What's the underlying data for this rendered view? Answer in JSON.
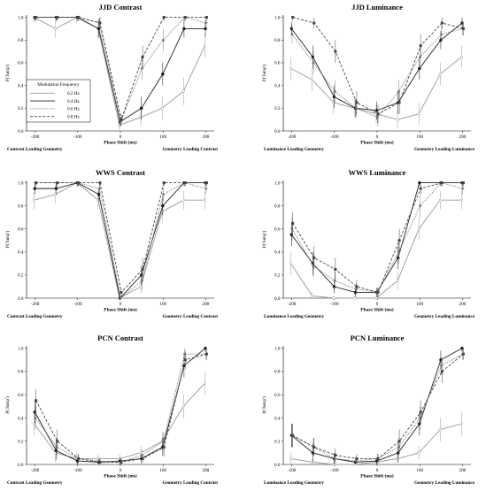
{
  "legend": {
    "title": "Modulation Frequency",
    "entries": [
      "0.2 Hz",
      "0.4 Hz",
      "0.6 Hz",
      "0.8 Hz"
    ]
  },
  "chart_data": [
    {
      "type": "line",
      "title": "JJD Contrast",
      "xlabel": "Phase Shift (ms)",
      "ylabel": "P('Jump')",
      "left_caption": "Contrast Leading Geometry",
      "right_caption": "Geometry Leading Contrast",
      "x": [
        -200,
        -150,
        -100,
        -50,
        0,
        50,
        100,
        150,
        200
      ],
      "xticks": [
        -200,
        -100,
        0,
        100,
        200
      ],
      "yticks": [
        0.0,
        0.2,
        0.4,
        0.6,
        0.8,
        1.0
      ],
      "xlim": [
        -220,
        220
      ],
      "ylim": [
        0,
        1.02
      ],
      "series": [
        {
          "name": "0.2 Hz",
          "values": [
            1.0,
            0.9,
            1.0,
            0.9,
            0.05,
            0.12,
            0.2,
            0.35,
            0.75
          ],
          "errors": [
            0.04,
            0.08,
            0.05,
            0.08,
            0.04,
            0.08,
            0.1,
            0.12,
            0.1
          ]
        },
        {
          "name": "0.4 Hz",
          "values": [
            1.0,
            1.0,
            1.0,
            0.9,
            0.08,
            0.2,
            0.5,
            0.9,
            0.9
          ],
          "errors": [
            0.03,
            0.03,
            0.03,
            0.08,
            0.04,
            0.1,
            0.1,
            0.08,
            0.07
          ]
        },
        {
          "name": "0.6 Hz",
          "values": [
            1.0,
            1.0,
            1.0,
            0.95,
            0.08,
            0.55,
            0.8,
            1.0,
            0.95
          ],
          "errors": [
            0.03,
            0.03,
            0.03,
            0.05,
            0.04,
            0.1,
            0.1,
            0.03,
            0.05
          ]
        },
        {
          "name": "0.8 Hz",
          "values": [
            1.0,
            1.0,
            1.0,
            0.95,
            0.1,
            0.65,
            1.0,
            1.0,
            1.0
          ],
          "errors": [
            0.03,
            0.03,
            0.03,
            0.05,
            0.05,
            0.1,
            0.03,
            0.03,
            0.03
          ]
        }
      ]
    },
    {
      "type": "line",
      "title": "JJD Luminance",
      "xlabel": "Phase Shift (ms)",
      "ylabel": "P('Jump')",
      "left_caption": "Luminance Leading Geometry",
      "right_caption": "Geometry Leading Luminance",
      "x": [
        -200,
        -150,
        -100,
        -50,
        0,
        50,
        100,
        150,
        200
      ],
      "xticks": [
        -200,
        -100,
        0,
        100,
        200
      ],
      "yticks": [
        0.0,
        0.2,
        0.4,
        0.6,
        0.8,
        1.0
      ],
      "xlim": [
        -220,
        220
      ],
      "ylim": [
        0,
        1.02
      ],
      "series": [
        {
          "name": "0.2 Hz",
          "values": [
            0.55,
            0.45,
            0.25,
            0.2,
            0.15,
            0.1,
            0.15,
            0.5,
            0.65
          ],
          "errors": [
            0.1,
            0.1,
            0.1,
            0.08,
            0.08,
            0.08,
            0.1,
            0.1,
            0.1
          ]
        },
        {
          "name": "0.4 Hz",
          "values": [
            0.9,
            0.65,
            0.3,
            0.2,
            0.18,
            0.25,
            0.55,
            0.8,
            0.95
          ],
          "errors": [
            0.06,
            0.1,
            0.1,
            0.08,
            0.08,
            0.1,
            0.1,
            0.08,
            0.05
          ]
        },
        {
          "name": "0.6 Hz",
          "values": [
            0.85,
            0.6,
            0.35,
            0.2,
            0.12,
            0.35,
            0.65,
            0.85,
            0.9
          ],
          "errors": [
            0.08,
            0.1,
            0.1,
            0.08,
            0.08,
            0.1,
            0.1,
            0.08,
            0.06
          ]
        },
        {
          "name": "0.8 Hz",
          "values": [
            1.0,
            0.95,
            0.7,
            0.25,
            0.15,
            0.25,
            0.75,
            0.95,
            0.9
          ],
          "errors": [
            0.03,
            0.05,
            0.1,
            0.1,
            0.08,
            0.1,
            0.1,
            0.05,
            0.06
          ]
        }
      ]
    },
    {
      "type": "line",
      "title": "WWS Contrast",
      "xlabel": "Phase Shift (ms)",
      "ylabel": "P('Jump')",
      "left_caption": "Contrast Leading Geometry",
      "right_caption": "Geometry Leading Contrast",
      "x": [
        -200,
        -150,
        -100,
        -50,
        0,
        50,
        100,
        150,
        200
      ],
      "xticks": [
        -200,
        -100,
        0,
        100,
        200
      ],
      "yticks": [
        0.0,
        0.2,
        0.4,
        0.6,
        0.8,
        1.0
      ],
      "xlim": [
        -220,
        220
      ],
      "ylim": [
        0,
        1.02
      ],
      "series": [
        {
          "name": "0.2 Hz",
          "values": [
            0.85,
            0.9,
            1.0,
            0.85,
            0.0,
            0.1,
            0.75,
            0.85,
            0.85
          ],
          "errors": [
            0.08,
            0.08,
            0.03,
            0.08,
            0.02,
            0.06,
            0.08,
            0.08,
            0.08
          ]
        },
        {
          "name": "0.4 Hz",
          "values": [
            0.95,
            0.95,
            1.0,
            0.9,
            0.0,
            0.2,
            0.8,
            1.0,
            1.0
          ],
          "errors": [
            0.05,
            0.05,
            0.03,
            0.06,
            0.02,
            0.08,
            0.08,
            0.03,
            0.03
          ]
        },
        {
          "name": "0.6 Hz",
          "values": [
            1.0,
            1.0,
            1.0,
            0.95,
            0.0,
            0.15,
            0.9,
            1.0,
            0.95
          ],
          "errors": [
            0.03,
            0.03,
            0.03,
            0.05,
            0.02,
            0.08,
            0.06,
            0.03,
            0.05
          ]
        },
        {
          "name": "0.8 Hz",
          "values": [
            1.0,
            1.0,
            1.0,
            1.0,
            0.05,
            0.25,
            1.0,
            1.0,
            1.0
          ],
          "errors": [
            0.03,
            0.03,
            0.03,
            0.03,
            0.03,
            0.1,
            0.03,
            0.03,
            0.03
          ]
        }
      ]
    },
    {
      "type": "line",
      "title": "WWS Luminance",
      "xlabel": "Phase Shift (ms)",
      "ylabel": "P('Jump')",
      "left_caption": "Luminance Leading Geometry",
      "right_caption": "Geometry Leading Luminance",
      "x": [
        -200,
        -150,
        -100,
        -50,
        0,
        50,
        100,
        150,
        200
      ],
      "xticks": [
        -200,
        -100,
        0,
        100,
        200
      ],
      "yticks": [
        0.0,
        0.2,
        0.4,
        0.6,
        0.8,
        1.0
      ],
      "xlim": [
        -220,
        220
      ],
      "ylim": [
        0,
        1.02
      ],
      "series": [
        {
          "name": "0.2 Hz",
          "values": [
            0.3,
            0.02,
            0.0,
            0.0,
            0.0,
            0.15,
            0.6,
            0.85,
            0.85
          ],
          "errors": [
            0.1,
            0.03,
            0.02,
            0.02,
            0.02,
            0.08,
            0.1,
            0.08,
            0.08
          ]
        },
        {
          "name": "0.4 Hz",
          "values": [
            0.55,
            0.3,
            0.1,
            0.05,
            0.05,
            0.35,
            1.0,
            1.0,
            1.0
          ],
          "errors": [
            0.1,
            0.1,
            0.06,
            0.04,
            0.04,
            0.1,
            0.03,
            0.03,
            0.03
          ]
        },
        {
          "name": "0.6 Hz",
          "values": [
            0.6,
            0.28,
            0.15,
            0.08,
            0.05,
            0.4,
            0.8,
            1.0,
            0.95
          ],
          "errors": [
            0.1,
            0.1,
            0.08,
            0.05,
            0.04,
            0.1,
            0.1,
            0.03,
            0.05
          ]
        },
        {
          "name": "0.8 Hz",
          "values": [
            0.65,
            0.35,
            0.25,
            0.1,
            0.05,
            0.5,
            0.95,
            1.0,
            1.0
          ],
          "errors": [
            0.1,
            0.1,
            0.1,
            0.06,
            0.04,
            0.1,
            0.05,
            0.03,
            0.03
          ]
        }
      ]
    },
    {
      "type": "line",
      "title": "PCN Contrast",
      "xlabel": "Phase Shift (ms)",
      "ylabel": "P('Jump')",
      "left_caption": "Contrast Leading Geometry",
      "right_caption": "Geometry Leading Contrast",
      "x": [
        -200,
        -150,
        -100,
        -50,
        0,
        50,
        100,
        150,
        200
      ],
      "xticks": [
        -200,
        -100,
        0,
        100,
        200
      ],
      "yticks": [
        0.0,
        0.2,
        0.4,
        0.6,
        0.8,
        1.0
      ],
      "xlim": [
        -220,
        220
      ],
      "ylim": [
        0,
        1.02
      ],
      "series": [
        {
          "name": "0.2 Hz",
          "values": [
            0.35,
            0.1,
            0.05,
            0.05,
            0.05,
            0.1,
            0.2,
            0.5,
            0.7
          ],
          "errors": [
            0.1,
            0.08,
            0.05,
            0.04,
            0.04,
            0.06,
            0.08,
            0.1,
            0.1
          ]
        },
        {
          "name": "0.4 Hz",
          "values": [
            0.45,
            0.12,
            0.03,
            0.02,
            0.03,
            0.05,
            0.15,
            0.85,
            1.0
          ],
          "errors": [
            0.1,
            0.08,
            0.03,
            0.03,
            0.03,
            0.04,
            0.08,
            0.1,
            0.03
          ]
        },
        {
          "name": "0.6 Hz",
          "values": [
            0.4,
            0.15,
            0.05,
            0.03,
            0.02,
            0.08,
            0.2,
            0.95,
            0.95
          ],
          "errors": [
            0.1,
            0.08,
            0.04,
            0.03,
            0.03,
            0.05,
            0.08,
            0.05,
            0.05
          ]
        },
        {
          "name": "0.8 Hz",
          "values": [
            0.55,
            0.2,
            0.05,
            0.02,
            0.02,
            0.05,
            0.15,
            0.9,
            0.95
          ],
          "errors": [
            0.1,
            0.1,
            0.04,
            0.03,
            0.03,
            0.04,
            0.08,
            0.08,
            0.05
          ]
        }
      ]
    },
    {
      "type": "line",
      "title": "PCN Luminance",
      "xlabel": "Phase Shift (ms)",
      "ylabel": "P('Jump')",
      "left_caption": "Luminance Leading Geometry",
      "right_caption": "Geometry Leading Luminance",
      "x": [
        -200,
        -150,
        -100,
        -50,
        0,
        50,
        100,
        150,
        200
      ],
      "xticks": [
        -200,
        -100,
        0,
        100,
        200
      ],
      "yticks": [
        0.0,
        0.2,
        0.4,
        0.6,
        0.8,
        1.0
      ],
      "xlim": [
        -220,
        220
      ],
      "ylim": [
        0,
        1.02
      ],
      "series": [
        {
          "name": "0.2 Hz",
          "values": [
            0.05,
            0.02,
            0.0,
            0.0,
            0.02,
            0.05,
            0.1,
            0.3,
            0.35
          ],
          "errors": [
            0.05,
            0.03,
            0.02,
            0.02,
            0.03,
            0.04,
            0.06,
            0.1,
            0.1
          ]
        },
        {
          "name": "0.4 Hz",
          "values": [
            0.25,
            0.1,
            0.05,
            0.02,
            0.03,
            0.1,
            0.35,
            0.9,
            1.0
          ],
          "errors": [
            0.1,
            0.08,
            0.05,
            0.03,
            0.03,
            0.08,
            0.1,
            0.08,
            0.03
          ]
        },
        {
          "name": "0.6 Hz",
          "values": [
            0.25,
            0.15,
            0.05,
            0.03,
            0.05,
            0.15,
            0.4,
            0.85,
            0.95
          ],
          "errors": [
            0.1,
            0.08,
            0.05,
            0.03,
            0.04,
            0.08,
            0.1,
            0.08,
            0.05
          ]
        },
        {
          "name": "0.8 Hz",
          "values": [
            0.25,
            0.15,
            0.08,
            0.05,
            0.05,
            0.2,
            0.45,
            0.8,
            0.95
          ],
          "errors": [
            0.1,
            0.08,
            0.06,
            0.04,
            0.04,
            0.1,
            0.1,
            0.1,
            0.05
          ]
        }
      ]
    }
  ]
}
